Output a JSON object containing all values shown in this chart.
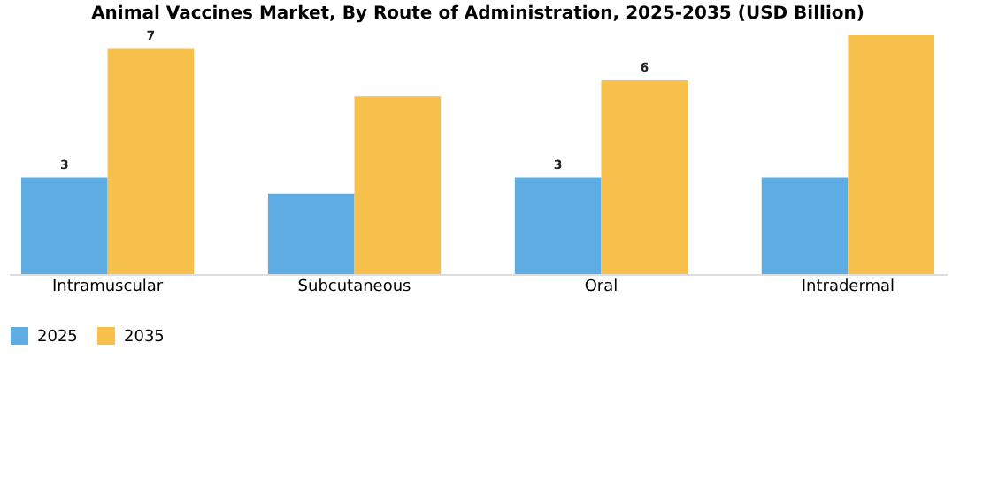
{
  "chart_data": {
    "type": "bar",
    "title": "Animal Vaccines Market, By Route of Administration, 2025-2035 (USD Billion)",
    "categories": [
      "Intramuscular",
      "Subcutaneous",
      "Oral",
      "Intradermal"
    ],
    "series": [
      {
        "name": "2025",
        "color": "#5dade2",
        "values": [
          3,
          2.5,
          3,
          3.0
        ],
        "value_labels": [
          "3",
          null,
          "3",
          null
        ]
      },
      {
        "name": "2035",
        "color": "#f7c04a",
        "values": [
          7,
          5.5,
          6,
          7.4
        ],
        "value_labels": [
          "7",
          null,
          "6",
          null
        ]
      }
    ],
    "legend": "bottom",
    "grid": false
  }
}
